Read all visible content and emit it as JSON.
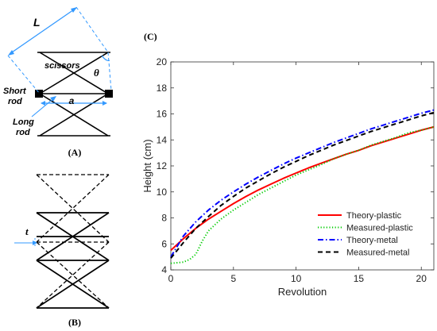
{
  "panel_a": {
    "label": "(A)",
    "dim_L": "L",
    "dim_a": "a",
    "angle": "θ",
    "scissors_label": "scissors",
    "short_rod_line1": "Short",
    "short_rod_line2": "rod",
    "long_rod_line1": "Long",
    "long_rod_line2": "rod"
  },
  "panel_b": {
    "label": "(B)",
    "dim_t": "t"
  },
  "panel_c": {
    "label": "(C)"
  },
  "chart_data": {
    "type": "line",
    "xlabel": "Revolution",
    "ylabel": "Height (cm)",
    "xlim": [
      0,
      21
    ],
    "ylim": [
      4,
      20
    ],
    "xticks": [
      0,
      5,
      10,
      15,
      20
    ],
    "yticks": [
      4,
      6,
      8,
      10,
      12,
      14,
      16,
      18,
      20
    ],
    "grid": false,
    "legend_position": "bottom-right",
    "series": [
      {
        "name": "Theory-plastic",
        "color": "#ff0000",
        "dash": "solid",
        "x": [
          0,
          1,
          2,
          3,
          4,
          5,
          6,
          7,
          8,
          9,
          10,
          11,
          12,
          13,
          14,
          15,
          16,
          17,
          18,
          19,
          20,
          21
        ],
        "y": [
          5.5,
          6.4,
          7.2,
          7.9,
          8.5,
          9.1,
          9.65,
          10.15,
          10.6,
          11.05,
          11.45,
          11.85,
          12.2,
          12.55,
          12.9,
          13.2,
          13.55,
          13.85,
          14.15,
          14.45,
          14.75,
          15.0
        ]
      },
      {
        "name": "Measured-plastic",
        "color": "#00cc00",
        "dash": "dotted",
        "x": [
          0,
          0.5,
          1,
          1.5,
          2,
          2.5,
          3,
          4,
          5,
          6,
          7,
          8,
          9,
          10,
          11,
          12,
          13,
          14,
          15,
          16,
          17,
          18,
          19,
          20,
          21
        ],
        "y": [
          4.5,
          4.55,
          4.6,
          4.8,
          5.2,
          6.2,
          7.0,
          7.9,
          8.6,
          9.2,
          9.8,
          10.3,
          10.8,
          11.3,
          11.7,
          12.1,
          12.55,
          12.9,
          13.2,
          13.6,
          13.9,
          14.2,
          14.55,
          14.75,
          15.0
        ]
      },
      {
        "name": "Theory-metal",
        "color": "#0000ff",
        "dash": "dashdot",
        "x": [
          0,
          1,
          2,
          3,
          4,
          5,
          6,
          7,
          8,
          9,
          10,
          11,
          12,
          13,
          14,
          15,
          16,
          17,
          18,
          19,
          20,
          21
        ],
        "y": [
          5.0,
          6.6,
          7.7,
          8.6,
          9.35,
          10.0,
          10.6,
          11.15,
          11.65,
          12.15,
          12.6,
          13.0,
          13.4,
          13.8,
          14.15,
          14.5,
          14.85,
          15.15,
          15.45,
          15.75,
          16.05,
          16.3
        ]
      },
      {
        "name": "Measured-metal",
        "color": "#000000",
        "dash": "dashed",
        "x": [
          0,
          1,
          2,
          3,
          4,
          5,
          6,
          7,
          8,
          9,
          10,
          11,
          12,
          13,
          14,
          15,
          16,
          17,
          18,
          19,
          20,
          21
        ],
        "y": [
          4.9,
          6.1,
          7.2,
          8.1,
          8.95,
          9.65,
          10.3,
          10.85,
          11.4,
          11.9,
          12.35,
          12.8,
          13.2,
          13.6,
          13.95,
          14.3,
          14.65,
          14.95,
          15.25,
          15.55,
          15.85,
          16.1
        ]
      }
    ]
  }
}
